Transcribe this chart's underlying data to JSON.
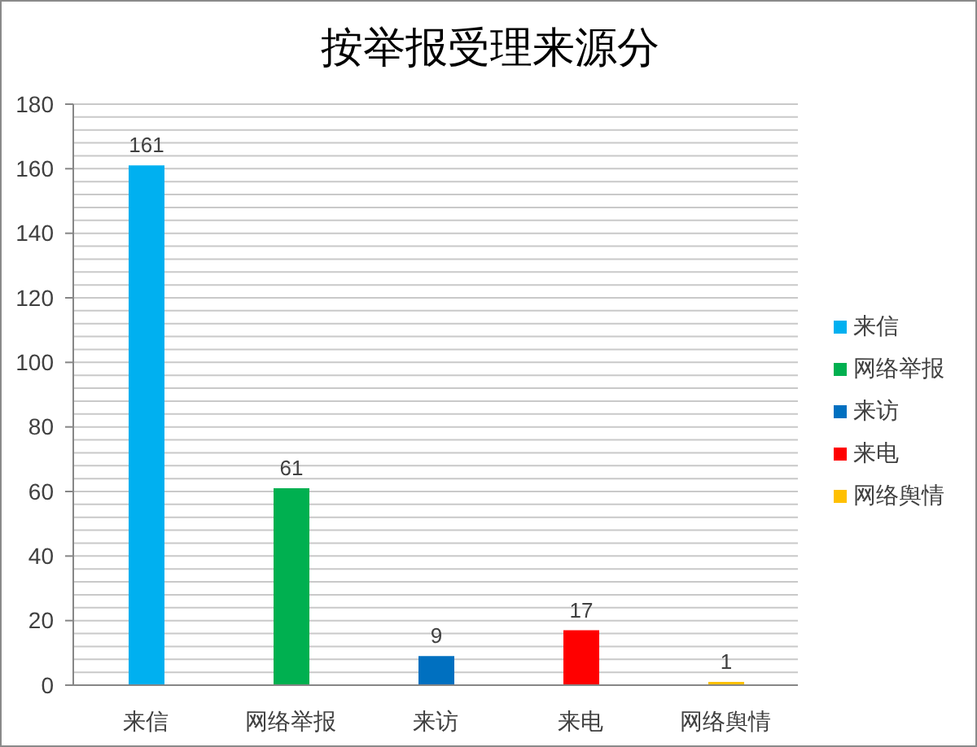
{
  "chart_data": {
    "type": "bar",
    "title": "按举报受理来源分",
    "categories": [
      "来信",
      "网络举报",
      "来访",
      "来电",
      "网络舆情"
    ],
    "series": [
      {
        "name": "来信",
        "color": "#00b0f0",
        "values": [
          161,
          null,
          null,
          null,
          null
        ]
      },
      {
        "name": "网络举报",
        "color": "#00b050",
        "values": [
          null,
          61,
          null,
          null,
          null
        ]
      },
      {
        "name": "来访",
        "color": "#0070c0",
        "values": [
          null,
          null,
          9,
          null,
          null
        ]
      },
      {
        "name": "来电",
        "color": "#ff0000",
        "values": [
          null,
          null,
          null,
          17,
          null
        ]
      },
      {
        "name": "网络舆情",
        "color": "#ffc000",
        "values": [
          null,
          null,
          null,
          null,
          1
        ]
      }
    ],
    "stacked": true,
    "ylim": [
      0,
      180
    ],
    "yticks": [
      0,
      {
        "value": 4,
        "label": null
      },
      {
        "value": 8,
        "label": null
      },
      {
        "value": 12,
        "label": null
      },
      {
        "value": 16,
        "label": null
      },
      20,
      {
        "value": 24,
        "label": null
      },
      {
        "value": 28,
        "label": null
      },
      {
        "value": 32,
        "label": null
      },
      {
        "value": 36,
        "label": null
      },
      40,
      {
        "value": 44,
        "label": null
      },
      {
        "value": 48,
        "label": null
      },
      {
        "value": 52,
        "label": null
      },
      {
        "value": 56,
        "label": null
      },
      60,
      {
        "value": 64,
        "label": null
      },
      {
        "value": 68,
        "label": null
      },
      {
        "value": 72,
        "label": null
      },
      {
        "value": 76,
        "label": null
      },
      80,
      {
        "value": 84,
        "label": null
      },
      {
        "value": 88,
        "label": null
      },
      {
        "value": 92,
        "label": null
      },
      {
        "value": 96,
        "label": null
      },
      100,
      {
        "value": 104,
        "label": null
      },
      {
        "value": 108,
        "label": null
      },
      {
        "value": 112,
        "label": null
      },
      {
        "value": 116,
        "label": null
      },
      120,
      {
        "value": 124,
        "label": null
      },
      {
        "value": 128,
        "label": null
      },
      {
        "value": 132,
        "label": null
      },
      {
        "value": 136,
        "label": null
      },
      140,
      {
        "value": 144,
        "label": null
      },
      {
        "value": 148,
        "label": null
      },
      {
        "value": 152,
        "label": null
      },
      {
        "value": 156,
        "label": null
      },
      160,
      {
        "value": 164,
        "label": null
      },
      {
        "value": 168,
        "label": null
      },
      {
        "value": 172,
        "label": null
      },
      {
        "value": 176,
        "label": null
      },
      180
    ],
    "grid": true,
    "legend": "right",
    "data_labels": true
  }
}
